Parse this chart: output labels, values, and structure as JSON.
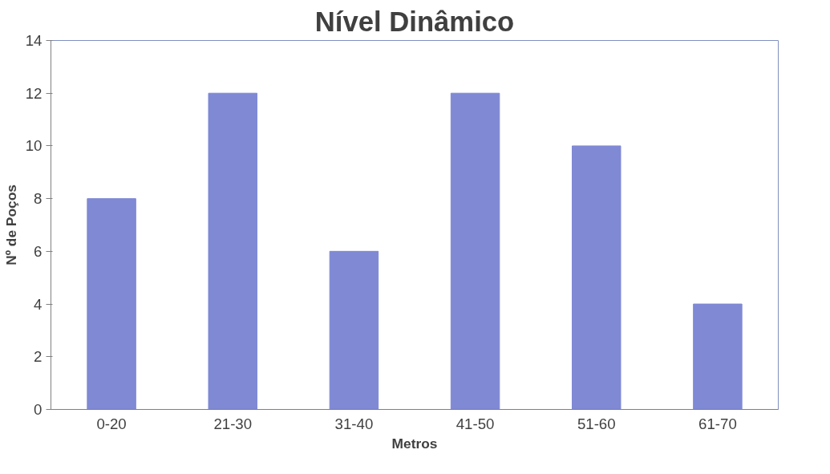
{
  "chart_data": {
    "type": "bar",
    "title": "Nível Dinâmico",
    "xlabel": "Metros",
    "ylabel": "Nº de Poços",
    "categories": [
      "0-20",
      "21-30",
      "31-40",
      "41-50",
      "51-60",
      "61-70"
    ],
    "values": [
      8,
      12,
      6,
      12,
      10,
      4
    ],
    "color": "#7f89d4",
    "ylim": [
      0,
      14
    ],
    "yticks": [
      0,
      2,
      4,
      6,
      8,
      10,
      12,
      14
    ],
    "grid": false
  }
}
